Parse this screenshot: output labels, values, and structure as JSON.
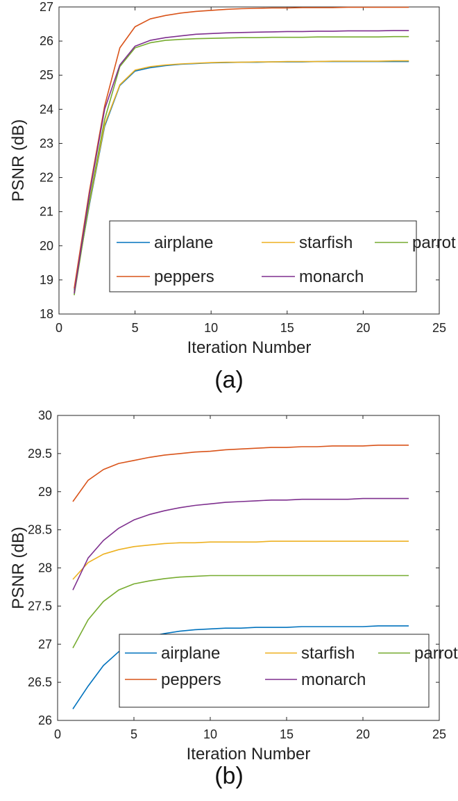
{
  "chart_data": [
    {
      "type": "line",
      "caption": "(a)",
      "xlabel": "Iteration Number",
      "ylabel": "PSNR (dB)",
      "xlim": [
        0,
        25
      ],
      "ylim": [
        18,
        27
      ],
      "xticks": [
        0,
        5,
        10,
        15,
        20,
        25
      ],
      "yticks": [
        18,
        19,
        20,
        21,
        22,
        23,
        24,
        25,
        26,
        27
      ],
      "grid": false,
      "legend_placement": "bottom-right",
      "x": [
        1,
        2,
        3,
        4,
        5,
        6,
        7,
        8,
        9,
        10,
        11,
        12,
        13,
        14,
        15,
        16,
        17,
        18,
        19,
        20,
        21,
        22,
        23
      ],
      "series": [
        {
          "name": "airplane",
          "color": "#0072BD",
          "values": [
            18.7,
            21.2,
            23.5,
            24.7,
            25.12,
            25.22,
            25.28,
            25.32,
            25.34,
            25.36,
            25.37,
            25.38,
            25.38,
            25.39,
            25.39,
            25.39,
            25.4,
            25.4,
            25.4,
            25.4,
            25.4,
            25.4,
            25.4
          ]
        },
        {
          "name": "starfish",
          "color": "#EDB120",
          "values": [
            18.65,
            21.25,
            23.55,
            24.72,
            25.15,
            25.25,
            25.3,
            25.33,
            25.35,
            25.37,
            25.38,
            25.38,
            25.39,
            25.39,
            25.4,
            25.4,
            25.4,
            25.41,
            25.41,
            25.41,
            25.41,
            25.42,
            25.42
          ]
        },
        {
          "name": "parrot",
          "color": "#77AC30",
          "values": [
            18.55,
            21.3,
            23.7,
            25.25,
            25.8,
            25.95,
            26.02,
            26.05,
            26.07,
            26.08,
            26.09,
            26.1,
            26.1,
            26.11,
            26.11,
            26.11,
            26.12,
            26.12,
            26.12,
            26.12,
            26.12,
            26.13,
            26.13
          ]
        },
        {
          "name": "peppers",
          "color": "#D95319",
          "values": [
            18.75,
            21.6,
            24.1,
            25.8,
            26.42,
            26.65,
            26.75,
            26.82,
            26.87,
            26.9,
            26.93,
            26.95,
            26.96,
            26.97,
            26.97,
            26.98,
            26.98,
            26.98,
            26.99,
            26.99,
            26.99,
            26.99,
            26.99
          ]
        },
        {
          "name": "monarch",
          "color": "#7E2F8E",
          "values": [
            18.6,
            21.5,
            24.0,
            25.3,
            25.85,
            26.02,
            26.1,
            26.15,
            26.2,
            26.22,
            26.24,
            26.25,
            26.26,
            26.27,
            26.28,
            26.28,
            26.29,
            26.29,
            26.3,
            26.3,
            26.3,
            26.31,
            26.31
          ]
        }
      ]
    },
    {
      "type": "line",
      "caption": "(b)",
      "xlabel": "Iteration Number",
      "ylabel": "PSNR (dB)",
      "xlim": [
        0,
        25
      ],
      "ylim": [
        26,
        30
      ],
      "xticks": [
        0,
        5,
        10,
        15,
        20,
        25
      ],
      "yticks": [
        26,
        26.5,
        27,
        27.5,
        28,
        28.5,
        29,
        29.5,
        30
      ],
      "grid": false,
      "legend_placement": "bottom-right",
      "x": [
        1,
        2,
        3,
        4,
        5,
        6,
        7,
        8,
        9,
        10,
        11,
        12,
        13,
        14,
        15,
        16,
        17,
        18,
        19,
        20,
        21,
        22,
        23
      ],
      "series": [
        {
          "name": "airplane",
          "color": "#0072BD",
          "values": [
            26.15,
            26.45,
            26.72,
            26.9,
            27.03,
            27.1,
            27.14,
            27.17,
            27.19,
            27.2,
            27.21,
            27.21,
            27.22,
            27.22,
            27.22,
            27.23,
            27.23,
            27.23,
            27.23,
            27.23,
            27.24,
            27.24,
            27.24
          ]
        },
        {
          "name": "starfish",
          "color": "#EDB120",
          "values": [
            27.85,
            28.07,
            28.18,
            28.24,
            28.28,
            28.3,
            28.32,
            28.33,
            28.33,
            28.34,
            28.34,
            28.34,
            28.34,
            28.35,
            28.35,
            28.35,
            28.35,
            28.35,
            28.35,
            28.35,
            28.35,
            28.35,
            28.35
          ]
        },
        {
          "name": "parrot",
          "color": "#77AC30",
          "values": [
            26.95,
            27.32,
            27.56,
            27.71,
            27.79,
            27.83,
            27.86,
            27.88,
            27.89,
            27.9,
            27.9,
            27.9,
            27.9,
            27.9,
            27.9,
            27.9,
            27.9,
            27.9,
            27.9,
            27.9,
            27.9,
            27.9,
            27.9
          ]
        },
        {
          "name": "peppers",
          "color": "#D95319",
          "values": [
            28.87,
            29.15,
            29.29,
            29.37,
            29.41,
            29.45,
            29.48,
            29.5,
            29.52,
            29.53,
            29.55,
            29.56,
            29.57,
            29.58,
            29.58,
            29.59,
            29.59,
            29.6,
            29.6,
            29.6,
            29.61,
            29.61,
            29.61
          ]
        },
        {
          "name": "monarch",
          "color": "#7E2F8E",
          "values": [
            27.71,
            28.13,
            28.36,
            28.52,
            28.63,
            28.7,
            28.75,
            28.79,
            28.82,
            28.84,
            28.86,
            28.87,
            28.88,
            28.89,
            28.89,
            28.9,
            28.9,
            28.9,
            28.9,
            28.91,
            28.91,
            28.91,
            28.91
          ]
        }
      ]
    }
  ]
}
